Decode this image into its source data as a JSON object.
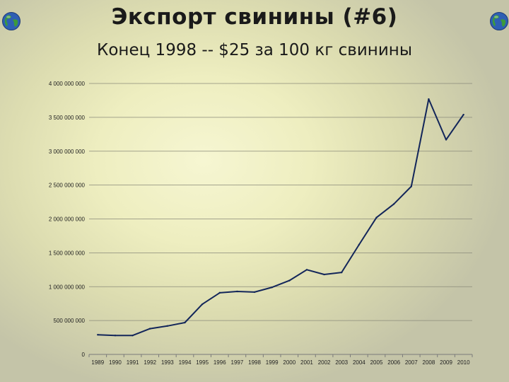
{
  "slide": {
    "title": "Экспорт свинины (#6)",
    "subtitle": "Конец 1998 -- $25 за 100 кг свинины"
  },
  "icons": {
    "left": "globe-icon",
    "right": "globe-icon"
  },
  "colors": {
    "line": "#13265a",
    "grid": "#8a8a7a",
    "axis": "#7a7a7a"
  },
  "chart_data": {
    "type": "line",
    "title": "",
    "xlabel": "",
    "ylabel": "",
    "grid": true,
    "legend": "none",
    "ylim": [
      0,
      4000000000
    ],
    "y_ticks": [
      0,
      500000000,
      1000000000,
      1500000000,
      2000000000,
      2500000000,
      3000000000,
      3500000000,
      4000000000
    ],
    "y_tick_labels": [
      "0",
      "500 000 000",
      "1 000 000 000",
      "1 500 000 000",
      "2 000 000 000",
      "2 500 000 000",
      "3 000 000 000",
      "3 500 000 000",
      "4 000 000 000"
    ],
    "categories": [
      "1989",
      "1990",
      "1991",
      "1992",
      "1993",
      "1994",
      "1995",
      "1996",
      "1997",
      "1998",
      "1999",
      "2000",
      "2001",
      "2002",
      "2003",
      "2004",
      "2005",
      "2006",
      "2007",
      "2008",
      "2009",
      "2010"
    ],
    "series": [
      {
        "values": [
          290000000,
          280000000,
          280000000,
          380000000,
          420000000,
          470000000,
          740000000,
          910000000,
          930000000,
          920000000,
          990000000,
          1090000000,
          1250000000,
          1180000000,
          1210000000,
          1620000000,
          2020000000,
          2220000000,
          2480000000,
          3770000000,
          3170000000,
          3540000000
        ]
      }
    ]
  }
}
